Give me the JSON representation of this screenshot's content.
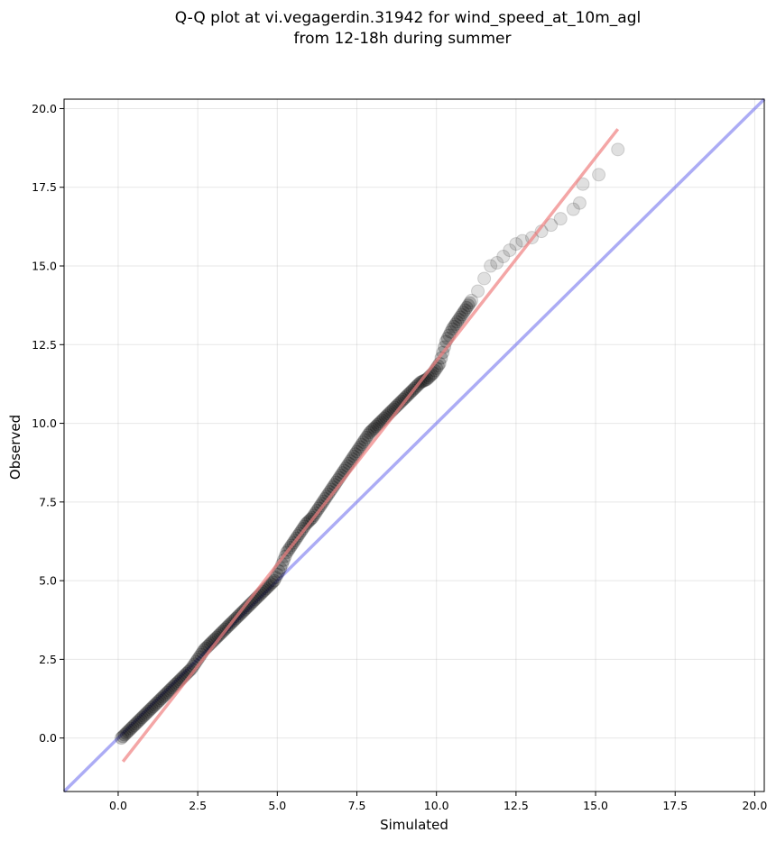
{
  "chart_data": {
    "type": "scatter",
    "title": [
      "Q-Q plot at vi.vegagerdin.31942 for wind_speed_at_10m_agl",
      "from 12-18h during summer"
    ],
    "xlabel": "Simulated",
    "ylabel": "Observed",
    "xlim": [
      -1.7,
      20.3
    ],
    "ylim": [
      -1.7,
      20.3
    ],
    "xticks": [
      0.0,
      2.5,
      5.0,
      7.5,
      10.0,
      12.5,
      15.0,
      17.5,
      20.0
    ],
    "yticks": [
      0.0,
      2.5,
      5.0,
      7.5,
      10.0,
      12.5,
      15.0,
      17.5,
      20.0
    ],
    "grid": true,
    "series": [
      {
        "kind": "quantile-points",
        "color": "#000000",
        "x": [
          0.1,
          0.3,
          0.5,
          0.7,
          0.9,
          1.1,
          1.3,
          1.5,
          1.7,
          1.9,
          2.1,
          2.3,
          2.5,
          2.7,
          2.9,
          3.1,
          3.3,
          3.5,
          3.7,
          3.9,
          4.1,
          4.3,
          4.5,
          4.7,
          4.9,
          5.1,
          5.3,
          5.5,
          5.7,
          5.9,
          6.1,
          6.3,
          6.5,
          6.7,
          6.9,
          7.1,
          7.3,
          7.5,
          7.7,
          7.9,
          8.1,
          8.3,
          8.5,
          8.7,
          8.9,
          9.1,
          9.3,
          9.5,
          9.7,
          9.9,
          10.1,
          10.3,
          10.5,
          10.7,
          10.9,
          11.1,
          11.3,
          11.5,
          11.7,
          11.9,
          12.1,
          12.3,
          12.5,
          12.7,
          13.0,
          13.3,
          13.6,
          13.9,
          14.3,
          14.5,
          14.6,
          15.1,
          15.7
        ],
        "y": [
          0.0,
          0.2,
          0.4,
          0.6,
          0.8,
          1.0,
          1.2,
          1.4,
          1.6,
          1.8,
          2.0,
          2.2,
          2.5,
          2.8,
          3.0,
          3.2,
          3.4,
          3.6,
          3.8,
          4.0,
          4.2,
          4.4,
          4.6,
          4.8,
          5.0,
          5.4,
          5.9,
          6.2,
          6.5,
          6.8,
          7.0,
          7.3,
          7.6,
          7.9,
          8.2,
          8.5,
          8.8,
          9.1,
          9.4,
          9.7,
          9.9,
          10.1,
          10.3,
          10.5,
          10.7,
          10.9,
          11.1,
          11.3,
          11.4,
          11.6,
          11.9,
          12.6,
          13.0,
          13.3,
          13.6,
          13.9,
          14.2,
          14.6,
          15.0,
          15.1,
          15.3,
          15.5,
          15.7,
          15.8,
          15.9,
          16.1,
          16.3,
          16.5,
          16.8,
          17.0,
          17.6,
          17.9,
          18.7
        ]
      },
      {
        "kind": "fit-line",
        "color": "#f08080",
        "x": [
          0.15,
          15.7
        ],
        "y": [
          -0.75,
          19.35
        ]
      },
      {
        "kind": "reference-1to1",
        "color": "#8080f0",
        "x": [
          -1.7,
          20.3
        ],
        "y": [
          -1.7,
          20.3
        ]
      }
    ]
  }
}
